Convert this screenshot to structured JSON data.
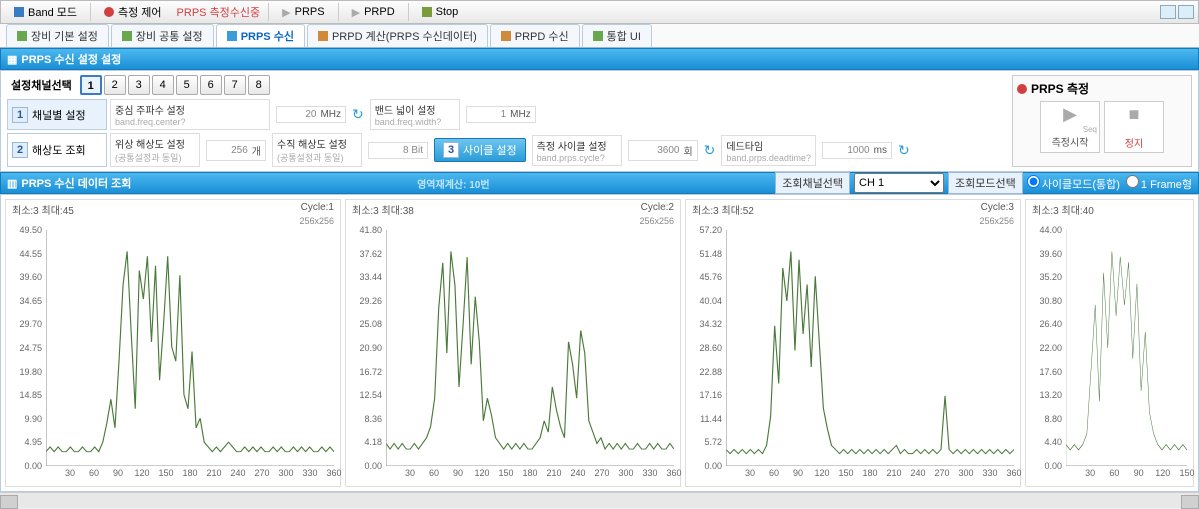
{
  "toolbar": {
    "band_mode": "Band 모드",
    "meas_ctrl": "측정 제어",
    "prps_recv_status": "PRPS 측정수신중",
    "btn_prps": "PRPS",
    "btn_prpd": "PRPD",
    "btn_stop": "Stop"
  },
  "tabs": [
    {
      "label": "장비 기본 설정",
      "icon": "#6aa84f"
    },
    {
      "label": "장비 공통 설정",
      "icon": "#6aa84f"
    },
    {
      "label": "PRPS 수신",
      "icon": "#3a9cd8",
      "active": true
    },
    {
      "label": "PRPD 계산(PRPS 수신데이터)",
      "icon": "#d08a3a"
    },
    {
      "label": "PRPD 수신",
      "icon": "#d08a3a"
    },
    {
      "label": "통합 UI",
      "icon": "#6aa84f"
    }
  ],
  "section1_title": "PRPS 수신 설정 설정",
  "channel_select_label": "설정채널선택",
  "channels": [
    "1",
    "2",
    "3",
    "4",
    "5",
    "6",
    "7",
    "8"
  ],
  "selected_channel": 1,
  "cfg_tabs": [
    {
      "num": "1",
      "label": "채널별 설정",
      "active": true
    },
    {
      "num": "2",
      "label": "해상도 조회"
    }
  ],
  "row1": {
    "f1": {
      "label": "중심 주파수 설정",
      "hint": "band.freq.center?",
      "value": "20",
      "unit": "MHz"
    },
    "f2": {
      "label": "밴드 넓이 설정",
      "hint": "band.freq.width?",
      "value": "1",
      "unit": "MHz"
    }
  },
  "row2": {
    "f1": {
      "label": "위상 해상도 설정",
      "hint": "(공통설정과 동일)",
      "value": "256",
      "unit": "개"
    },
    "f2": {
      "label": "수직 해상도 설정",
      "hint": "(공통설정과 동일)",
      "value": "8 Bit",
      "unit": ""
    },
    "cycle_btn_num": "3",
    "cycle_btn_label": "사이클 설정",
    "f3": {
      "label": "측정 사이클 설정",
      "hint": "band.prps.cycle?",
      "value": "3600",
      "unit": "회"
    },
    "f4": {
      "label": "데드타임",
      "hint": "band.prps.deadtime?",
      "value": "1000",
      "unit": "ms"
    }
  },
  "meas": {
    "title": "PRPS 측정",
    "start_label": "측정시작",
    "start_hint": "Seq",
    "stop_label": "정지"
  },
  "section2_title": "PRPS 수신 데이터 조회",
  "section2_hint": "영역재계산: 10번",
  "view_ch_label": "조회채널선택",
  "view_ch_options": [
    "CH 1"
  ],
  "view_mode_label": "조회모드선택",
  "radio_cycle": "사이클모드(통합)",
  "radio_frame": "1 Frame형",
  "charts": [
    {
      "title": "최소:3 최대:45",
      "cycle": "Cycle:1",
      "size": "256x256",
      "ymax": 49.5,
      "ystep": 4.95,
      "data": [
        3,
        4,
        3,
        4,
        3,
        3,
        4,
        3,
        3,
        4,
        3,
        3,
        4,
        3,
        5,
        9,
        14,
        8,
        22,
        38,
        45,
        28,
        12,
        41,
        35,
        44,
        26,
        42,
        18,
        30,
        44,
        25,
        22,
        40,
        15,
        12,
        24,
        8,
        10,
        5,
        4,
        3,
        4,
        3,
        4,
        5,
        4,
        3,
        3,
        4,
        3,
        4,
        3,
        4,
        3,
        3,
        4,
        3,
        4,
        3,
        3,
        4,
        3,
        4,
        3,
        4,
        3,
        3,
        4,
        3,
        4,
        3
      ],
      "xticks": [
        30,
        60,
        90,
        120,
        150,
        180,
        210,
        240,
        270,
        300,
        330,
        360
      ]
    },
    {
      "title": "최소:3 최대:38",
      "cycle": "Cycle:2",
      "size": "256x256",
      "ymax": 41.8,
      "ystep": 4.18,
      "data": [
        4,
        3,
        4,
        3,
        4,
        3,
        3,
        4,
        3,
        4,
        5,
        7,
        12,
        28,
        36,
        20,
        38,
        32,
        14,
        25,
        37,
        18,
        30,
        22,
        8,
        12,
        9,
        5,
        4,
        3,
        4,
        3,
        4,
        3,
        4,
        3,
        3,
        4,
        5,
        8,
        6,
        14,
        10,
        7,
        5,
        22,
        18,
        12,
        24,
        20,
        8,
        6,
        4,
        5,
        3,
        4,
        3,
        4,
        3,
        4,
        3,
        3,
        4,
        3,
        3,
        4,
        3,
        4,
        3,
        3,
        4,
        3
      ],
      "xticks": [
        30,
        60,
        90,
        120,
        150,
        180,
        210,
        240,
        270,
        300,
        330,
        360
      ]
    },
    {
      "title": "최소:3 최대:52",
      "cycle": "Cycle:3",
      "size": "256x256",
      "ymax": 57.2,
      "ystep": 5.72,
      "data": [
        4,
        3,
        4,
        3,
        4,
        3,
        4,
        3,
        4,
        3,
        5,
        12,
        34,
        20,
        48,
        40,
        52,
        28,
        50,
        32,
        44,
        24,
        46,
        30,
        14,
        9,
        5,
        4,
        3,
        4,
        3,
        4,
        3,
        4,
        3,
        4,
        3,
        4,
        3,
        4,
        3,
        4,
        5,
        3,
        4,
        3,
        3,
        4,
        3,
        4,
        3,
        4,
        3,
        4,
        17,
        4,
        3,
        4,
        3,
        4,
        3,
        4,
        3,
        4,
        3,
        4,
        3,
        4,
        3,
        4,
        3,
        4
      ],
      "xticks": [
        30,
        60,
        90,
        120,
        150,
        180,
        210,
        240,
        270,
        300,
        330,
        360
      ]
    },
    {
      "title": "최소:3 최대:40",
      "cycle": "",
      "size": "",
      "ymax": 44.0,
      "ystep": 4.4,
      "data": [
        4,
        3,
        4,
        3,
        4,
        6,
        18,
        30,
        12,
        36,
        22,
        40,
        28,
        39,
        30,
        38,
        20,
        34,
        14,
        25,
        10,
        6,
        4,
        3,
        4,
        3,
        4,
        3,
        4,
        3
      ],
      "xticks": [
        30,
        60,
        90,
        120,
        150
      ],
      "xmax": 150
    }
  ],
  "chart_colors": {
    "line": "#4a7a3a",
    "grid": "#eeeeee",
    "axis": "#999999"
  }
}
